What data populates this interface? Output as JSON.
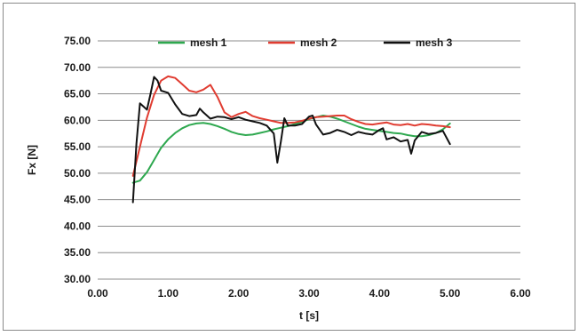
{
  "chart_data": {
    "type": "line",
    "xlabel": "t [s]",
    "ylabel": "Fx [N]",
    "xlim": [
      0,
      6
    ],
    "ylim": [
      30,
      75
    ],
    "x_ticks": [
      "0.00",
      "1.00",
      "2.00",
      "3.00",
      "4.00",
      "5.00",
      "6.00"
    ],
    "y_ticks": [
      "30.00",
      "35.00",
      "40.00",
      "45.00",
      "50.00",
      "55.00",
      "60.00",
      "65.00",
      "70.00",
      "75.00"
    ],
    "grid": "horizontal",
    "legend_position": "top",
    "series": [
      {
        "name": "mesh 1",
        "color": "#2ea84f",
        "x": [
          0.5,
          0.6,
          0.7,
          0.8,
          0.9,
          1.0,
          1.1,
          1.2,
          1.3,
          1.4,
          1.5,
          1.6,
          1.7,
          1.8,
          1.9,
          2.0,
          2.1,
          2.2,
          2.3,
          2.4,
          2.5,
          2.6,
          2.7,
          2.8,
          2.9,
          3.0,
          3.1,
          3.2,
          3.3,
          3.4,
          3.5,
          3.6,
          3.7,
          3.8,
          3.9,
          4.0,
          4.1,
          4.2,
          4.3,
          4.4,
          4.5,
          4.6,
          4.7,
          4.8,
          4.9,
          5.0
        ],
        "y": [
          48.2,
          48.6,
          50.2,
          52.5,
          54.8,
          56.4,
          57.6,
          58.5,
          59.1,
          59.4,
          59.5,
          59.3,
          58.9,
          58.4,
          57.8,
          57.4,
          57.2,
          57.3,
          57.6,
          57.9,
          58.3,
          58.6,
          58.9,
          59.3,
          59.7,
          60.2,
          60.6,
          60.9,
          60.7,
          60.3,
          59.8,
          59.3,
          58.8,
          58.4,
          58.2,
          58.0,
          57.8,
          57.6,
          57.5,
          57.2,
          57.0,
          57.0,
          57.2,
          57.6,
          58.3,
          59.4
        ]
      },
      {
        "name": "mesh 2",
        "color": "#e03c31",
        "x": [
          0.5,
          0.6,
          0.7,
          0.8,
          0.9,
          1.0,
          1.1,
          1.2,
          1.3,
          1.4,
          1.5,
          1.6,
          1.7,
          1.8,
          1.9,
          2.0,
          2.1,
          2.2,
          2.3,
          2.4,
          2.5,
          2.6,
          2.7,
          2.8,
          2.9,
          3.0,
          3.1,
          3.2,
          3.3,
          3.4,
          3.5,
          3.6,
          3.7,
          3.8,
          3.9,
          4.0,
          4.1,
          4.2,
          4.3,
          4.4,
          4.5,
          4.6,
          4.7,
          4.8,
          4.9,
          5.0
        ],
        "y": [
          49.5,
          55.0,
          60.5,
          64.8,
          67.5,
          68.3,
          68.0,
          66.8,
          65.6,
          65.3,
          65.8,
          66.7,
          64.4,
          61.5,
          60.6,
          61.2,
          61.6,
          60.8,
          60.4,
          60.1,
          59.8,
          59.5,
          59.5,
          59.6,
          59.9,
          60.3,
          60.6,
          60.7,
          60.8,
          60.9,
          60.9,
          60.2,
          59.7,
          59.3,
          59.2,
          59.4,
          59.6,
          59.2,
          59.1,
          59.3,
          59.0,
          59.3,
          59.2,
          59.0,
          58.9,
          58.7
        ]
      },
      {
        "name": "mesh 3",
        "color": "#111111",
        "x": [
          0.5,
          0.55,
          0.6,
          0.7,
          0.75,
          0.8,
          0.85,
          0.9,
          1.0,
          1.1,
          1.2,
          1.3,
          1.4,
          1.45,
          1.5,
          1.6,
          1.7,
          1.8,
          1.9,
          2.0,
          2.1,
          2.2,
          2.3,
          2.4,
          2.5,
          2.55,
          2.6,
          2.65,
          2.7,
          2.8,
          2.9,
          3.0,
          3.05,
          3.1,
          3.2,
          3.3,
          3.4,
          3.5,
          3.6,
          3.7,
          3.8,
          3.9,
          4.0,
          4.05,
          4.1,
          4.2,
          4.3,
          4.4,
          4.45,
          4.5,
          4.6,
          4.7,
          4.8,
          4.9,
          5.0
        ],
        "y": [
          44.5,
          55.5,
          63.2,
          62.0,
          65.0,
          68.2,
          67.5,
          65.6,
          65.2,
          63.0,
          61.2,
          60.8,
          61.0,
          62.2,
          61.5,
          60.3,
          60.7,
          60.6,
          60.2,
          60.6,
          60.1,
          59.8,
          59.5,
          59.0,
          57.5,
          52.0,
          56.0,
          60.4,
          59.0,
          59.0,
          59.3,
          60.7,
          60.9,
          59.2,
          57.3,
          57.6,
          58.2,
          57.8,
          57.2,
          57.8,
          57.5,
          57.3,
          58.2,
          58.5,
          56.4,
          56.8,
          56.0,
          56.3,
          53.7,
          56.2,
          57.8,
          57.4,
          57.6,
          58.0,
          55.5
        ]
      }
    ]
  }
}
